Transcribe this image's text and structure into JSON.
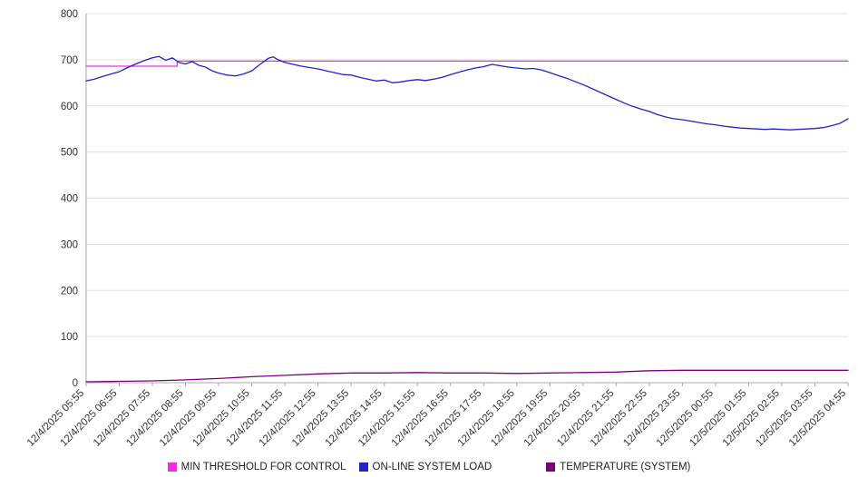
{
  "chart_data": {
    "type": "line",
    "title": "",
    "grid": true,
    "legend_position": "bottom",
    "x_axis": {
      "range": [
        0,
        23
      ],
      "tick_labels": [
        "12/4/2025 05:55",
        "12/4/2025 06:55",
        "12/4/2025 07:55",
        "12/4/2025 08:55",
        "12/4/2025 09:55",
        "12/4/2025 10:55",
        "12/4/2025 11:55",
        "12/4/2025 12:55",
        "12/4/2025 13:55",
        "12/4/2025 14:55",
        "12/4/2025 15:55",
        "12/4/2025 16:55",
        "12/4/2025 17:55",
        "12/4/2025 18:55",
        "12/4/2025 19:55",
        "12/4/2025 20:55",
        "12/4/2025 21:55",
        "12/4/2025 22:55",
        "12/4/2025 23:55",
        "12/5/2025 00:55",
        "12/5/2025 01:55",
        "12/5/2025 02:55",
        "12/5/2025 03:55",
        "12/5/2025 04:55"
      ]
    },
    "y_axis": {
      "min": 0,
      "max": 800,
      "tick_step": 100,
      "ticks": [
        0,
        100,
        200,
        300,
        400,
        500,
        600,
        700,
        800
      ]
    },
    "series": [
      {
        "name": "MIN THRESHOLD FOR CONTROL",
        "color": "#ee2fe0",
        "points": [
          [
            0,
            686
          ],
          [
            2.75,
            686
          ],
          [
            2.75,
            697
          ],
          [
            23,
            697
          ]
        ]
      },
      {
        "name": "ON-LINE SYSTEM LOAD",
        "color": "#2323c8",
        "points": [
          [
            0,
            654
          ],
          [
            0.25,
            658
          ],
          [
            0.5,
            664
          ],
          [
            0.75,
            669
          ],
          [
            1,
            674
          ],
          [
            1.25,
            683
          ],
          [
            1.5,
            691
          ],
          [
            1.75,
            698
          ],
          [
            2,
            704
          ],
          [
            2.2,
            707
          ],
          [
            2.4,
            699
          ],
          [
            2.6,
            704
          ],
          [
            2.8,
            694
          ],
          [
            3,
            691
          ],
          [
            3.2,
            696
          ],
          [
            3.4,
            688
          ],
          [
            3.6,
            684
          ],
          [
            3.8,
            676
          ],
          [
            4,
            671
          ],
          [
            4.25,
            667
          ],
          [
            4.5,
            665
          ],
          [
            4.75,
            669
          ],
          [
            5,
            676
          ],
          [
            5.25,
            690
          ],
          [
            5.5,
            703
          ],
          [
            5.65,
            706
          ],
          [
            5.8,
            700
          ],
          [
            6,
            694
          ],
          [
            6.25,
            690
          ],
          [
            6.5,
            686
          ],
          [
            6.75,
            683
          ],
          [
            7,
            680
          ],
          [
            7.25,
            676
          ],
          [
            7.5,
            672
          ],
          [
            7.75,
            668
          ],
          [
            8,
            667
          ],
          [
            8.25,
            662
          ],
          [
            8.5,
            658
          ],
          [
            8.75,
            654
          ],
          [
            9,
            656
          ],
          [
            9.25,
            650
          ],
          [
            9.5,
            652
          ],
          [
            9.75,
            655
          ],
          [
            10,
            657
          ],
          [
            10.25,
            655
          ],
          [
            10.5,
            658
          ],
          [
            10.75,
            662
          ],
          [
            11,
            668
          ],
          [
            11.25,
            673
          ],
          [
            11.5,
            678
          ],
          [
            11.75,
            682
          ],
          [
            12,
            685
          ],
          [
            12.25,
            690
          ],
          [
            12.5,
            687
          ],
          [
            12.75,
            684
          ],
          [
            13,
            682
          ],
          [
            13.25,
            680
          ],
          [
            13.5,
            681
          ],
          [
            13.75,
            678
          ],
          [
            14,
            672
          ],
          [
            14.25,
            666
          ],
          [
            14.5,
            660
          ],
          [
            14.75,
            653
          ],
          [
            15,
            646
          ],
          [
            15.25,
            638
          ],
          [
            15.5,
            630
          ],
          [
            15.75,
            622
          ],
          [
            16,
            614
          ],
          [
            16.25,
            606
          ],
          [
            16.5,
            599
          ],
          [
            16.75,
            593
          ],
          [
            17,
            588
          ],
          [
            17.25,
            581
          ],
          [
            17.5,
            576
          ],
          [
            17.75,
            572
          ],
          [
            18,
            570
          ],
          [
            18.25,
            567
          ],
          [
            18.5,
            564
          ],
          [
            18.75,
            561
          ],
          [
            19,
            559
          ],
          [
            19.25,
            556
          ],
          [
            19.5,
            554
          ],
          [
            19.75,
            552
          ],
          [
            20,
            551
          ],
          [
            20.25,
            550
          ],
          [
            20.5,
            549
          ],
          [
            20.75,
            550
          ],
          [
            21,
            549
          ],
          [
            21.25,
            548
          ],
          [
            21.5,
            549
          ],
          [
            21.75,
            550
          ],
          [
            22,
            551
          ],
          [
            22.25,
            553
          ],
          [
            22.5,
            557
          ],
          [
            22.75,
            562
          ],
          [
            23,
            572
          ]
        ]
      },
      {
        "name": "TEMPERATURE (SYSTEM)",
        "color": "#7c007c",
        "points": [
          [
            0,
            2
          ],
          [
            1,
            3
          ],
          [
            2,
            4
          ],
          [
            3,
            6
          ],
          [
            4,
            9
          ],
          [
            5,
            13
          ],
          [
            6,
            16
          ],
          [
            7,
            19
          ],
          [
            8,
            21
          ],
          [
            9,
            21
          ],
          [
            10,
            22
          ],
          [
            11,
            21
          ],
          [
            12,
            21
          ],
          [
            13,
            20
          ],
          [
            14,
            21
          ],
          [
            15,
            22
          ],
          [
            16,
            23
          ],
          [
            17,
            26
          ],
          [
            18,
            27
          ],
          [
            19,
            27
          ],
          [
            20,
            27
          ],
          [
            21,
            27
          ],
          [
            22,
            27
          ],
          [
            23,
            27
          ]
        ]
      }
    ]
  }
}
